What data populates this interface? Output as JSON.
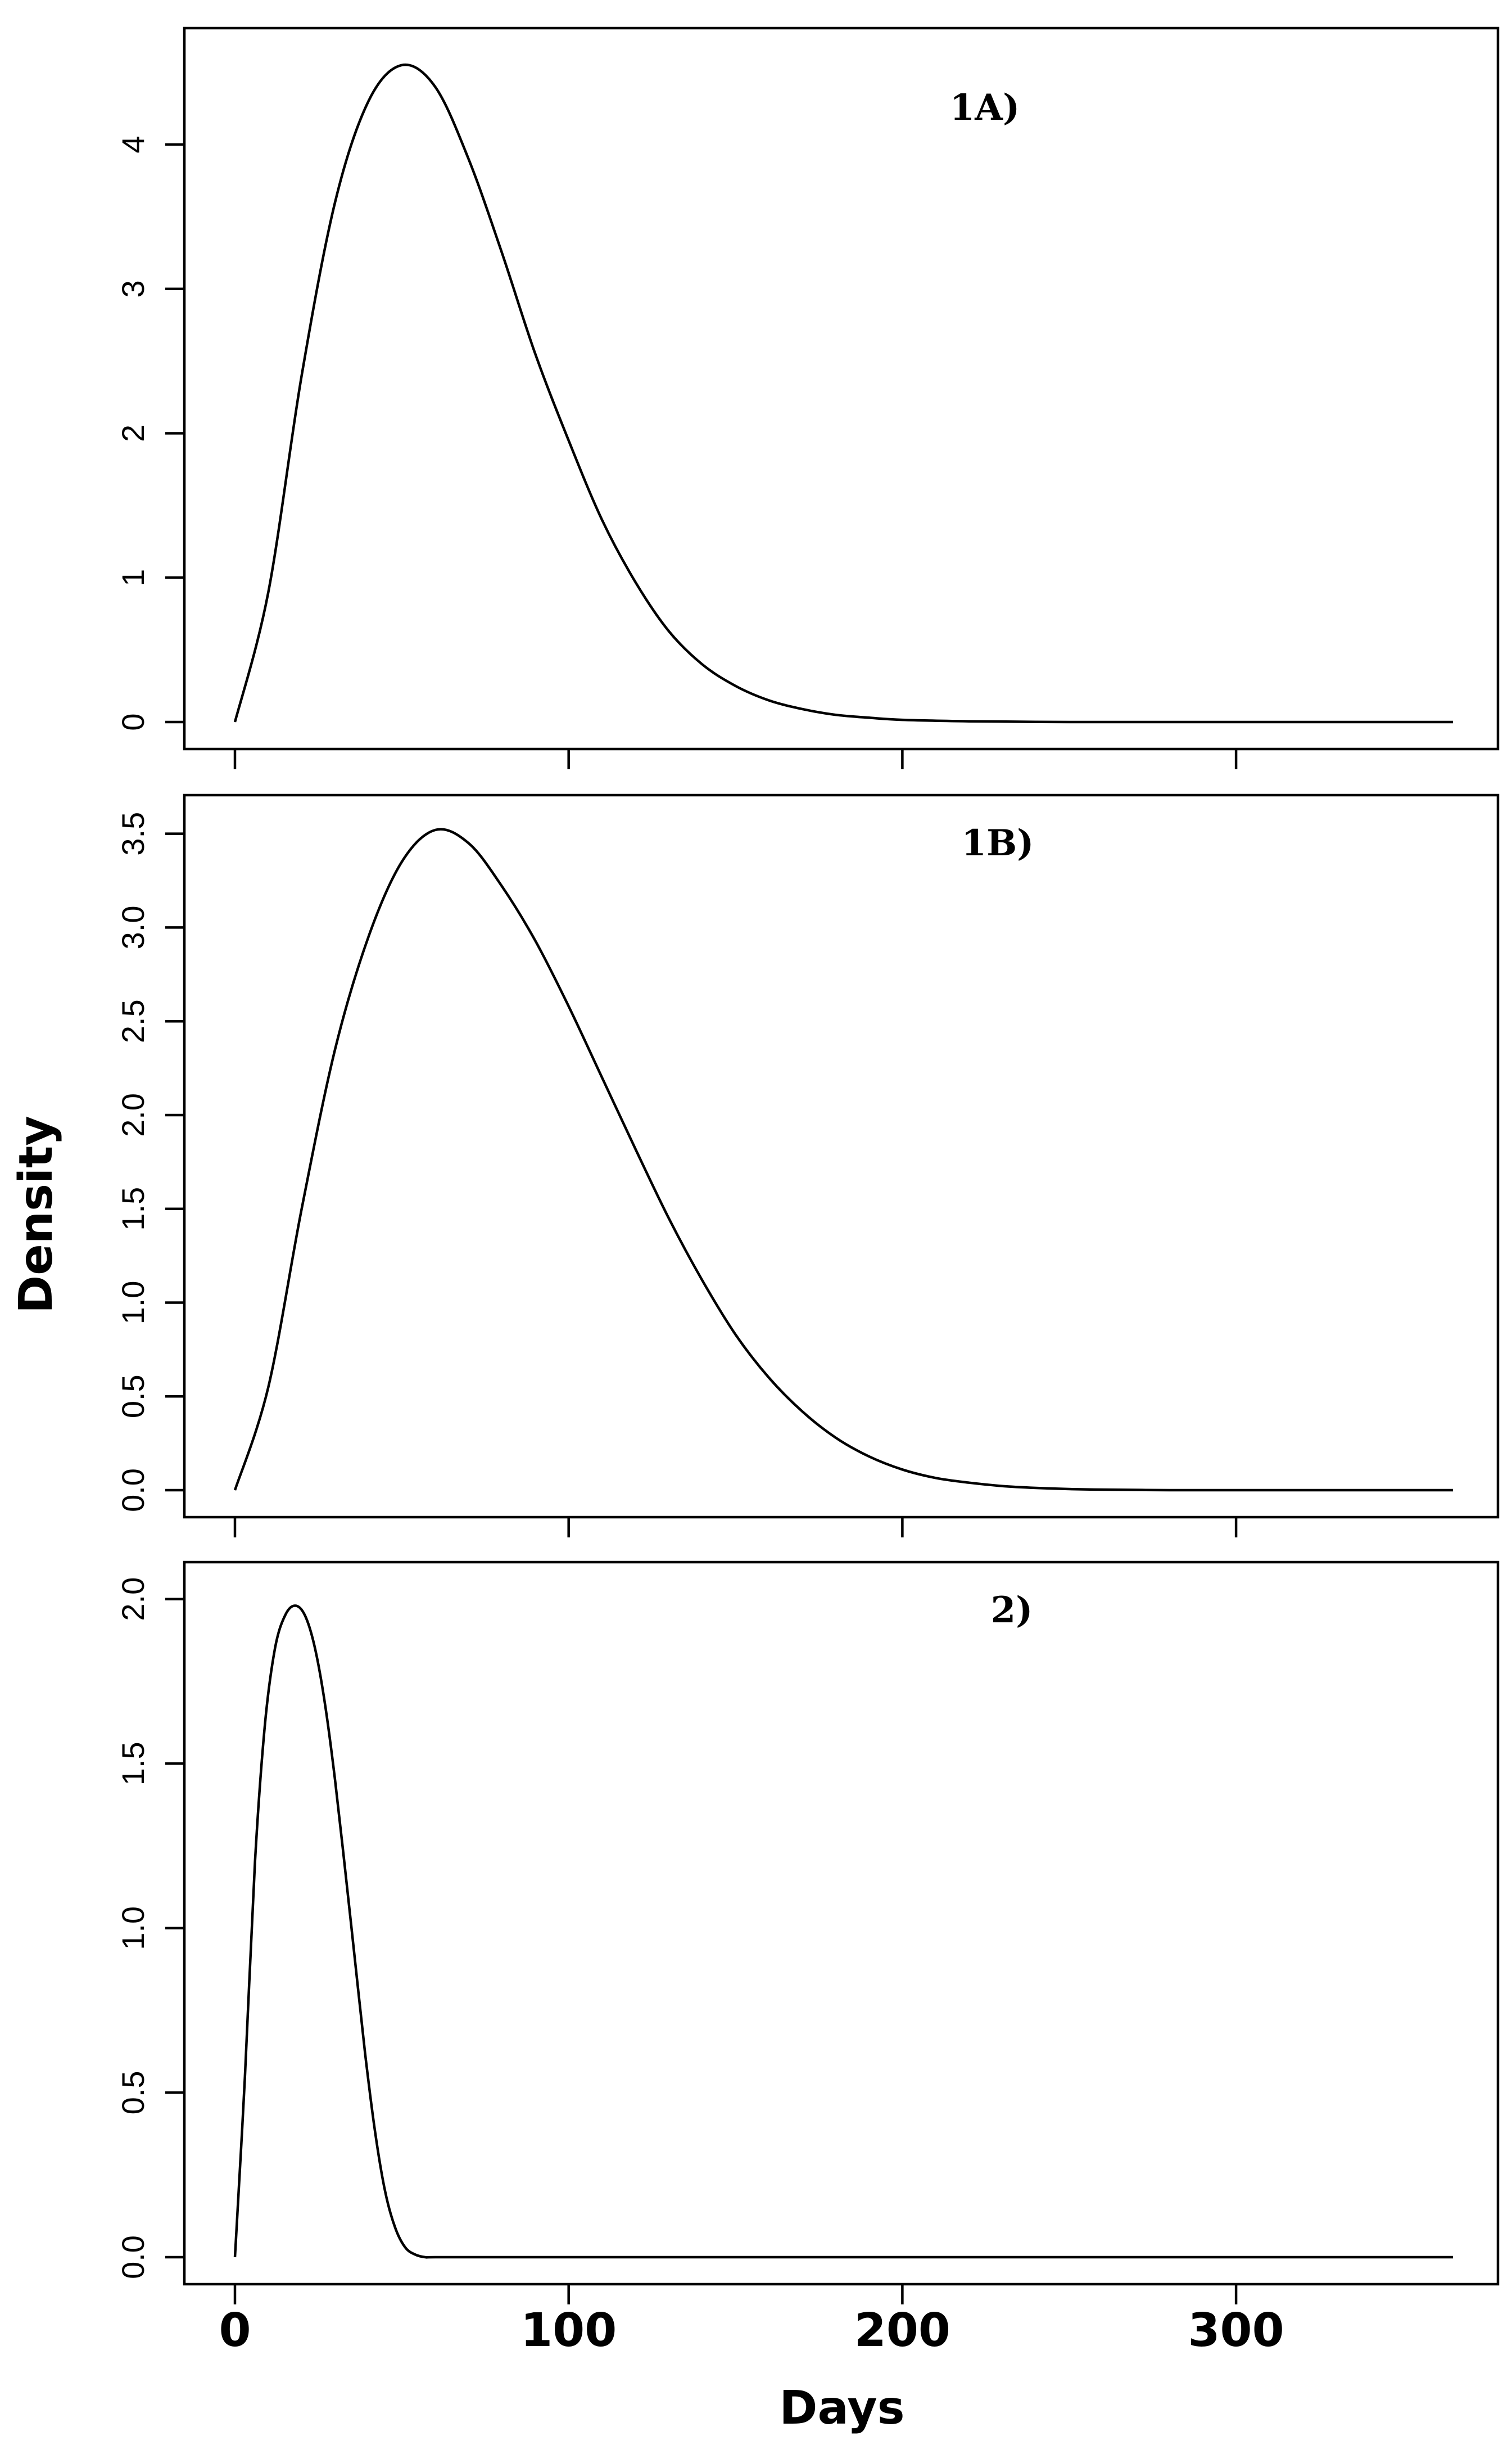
{
  "chart_data": {
    "type": "line",
    "xlabel": "Days",
    "ylabel": "Density",
    "xlim": [
      0,
      365
    ],
    "xticks": [
      0,
      100,
      200,
      300
    ],
    "shared_x_axis": true,
    "grid": false,
    "panels": [
      {
        "label": "1A)",
        "ylim": [
          0,
          4.6
        ],
        "yticks": [
          "0",
          "1",
          "2",
          "3",
          "4"
        ],
        "ytick_values": [
          0,
          1,
          2,
          3,
          4
        ],
        "x": [
          0,
          10,
          20,
          30,
          40,
          50,
          60,
          70,
          80,
          90,
          100,
          110,
          120,
          130,
          140,
          150,
          160,
          170,
          180,
          190,
          200,
          220,
          240,
          260,
          280,
          300,
          320,
          340,
          365
        ],
        "y": [
          0,
          0.9,
          2.4,
          3.6,
          4.3,
          4.55,
          4.4,
          3.9,
          3.25,
          2.55,
          1.95,
          1.4,
          0.97,
          0.63,
          0.4,
          0.25,
          0.15,
          0.09,
          0.05,
          0.03,
          0.015,
          0.005,
          0.001,
          0,
          0,
          0,
          0,
          0,
          0
        ]
      },
      {
        "label": "1B)",
        "ylim": [
          0,
          3.55
        ],
        "yticks": [
          "0.0",
          "0.5",
          "1.0",
          "1.5",
          "2.0",
          "2.5",
          "3.0",
          "3.5"
        ],
        "ytick_values": [
          0,
          0.5,
          1.0,
          1.5,
          2.0,
          2.5,
          3.0,
          3.5
        ],
        "x": [
          0,
          10,
          20,
          30,
          40,
          50,
          60,
          70,
          80,
          90,
          100,
          110,
          120,
          130,
          140,
          150,
          160,
          170,
          180,
          190,
          200,
          210,
          220,
          230,
          240,
          250,
          260,
          280,
          300,
          320,
          340,
          365
        ],
        "y": [
          0,
          0.55,
          1.5,
          2.35,
          2.95,
          3.35,
          3.52,
          3.45,
          3.22,
          2.93,
          2.58,
          2.2,
          1.82,
          1.45,
          1.12,
          0.83,
          0.6,
          0.42,
          0.28,
          0.18,
          0.11,
          0.065,
          0.04,
          0.022,
          0.012,
          0.006,
          0.003,
          0,
          0,
          0,
          0,
          0
        ]
      },
      {
        "label": "2)",
        "ylim": [
          0,
          2.02
        ],
        "yticks": [
          "0.0",
          "0.5",
          "1.0",
          "1.5",
          "2.0"
        ],
        "ytick_values": [
          0,
          0.5,
          1.0,
          1.5,
          2.0
        ],
        "x": [
          0,
          3,
          6,
          9,
          12,
          15,
          18,
          21,
          24,
          27,
          30,
          33,
          36,
          39,
          42,
          45,
          48,
          51,
          54,
          57,
          60,
          80,
          100,
          150,
          200,
          250,
          300,
          365
        ],
        "y": [
          0,
          0.55,
          1.2,
          1.62,
          1.85,
          1.95,
          1.98,
          1.95,
          1.85,
          1.68,
          1.45,
          1.18,
          0.9,
          0.62,
          0.38,
          0.2,
          0.09,
          0.03,
          0.008,
          0,
          0,
          0,
          0,
          0,
          0,
          0,
          0,
          0
        ]
      }
    ]
  }
}
